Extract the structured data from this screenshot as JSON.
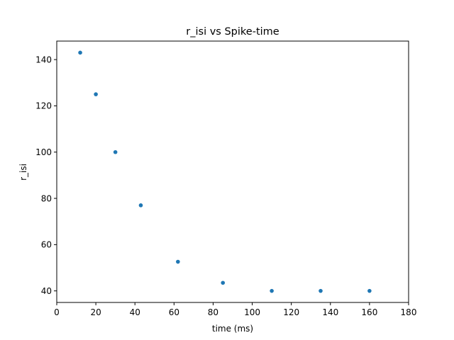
{
  "chart_data": {
    "type": "scatter",
    "title": "r_isi vs Spike-time",
    "xlabel": "time (ms)",
    "ylabel": "r_isi",
    "xlim": [
      0,
      180
    ],
    "ylim": [
      35,
      148
    ],
    "xticks": [
      0,
      20,
      40,
      60,
      80,
      100,
      120,
      140,
      160,
      180
    ],
    "yticks": [
      40,
      60,
      80,
      100,
      120,
      140
    ],
    "grid": false,
    "series": [
      {
        "color": "#1f77b4",
        "x": [
          12,
          20,
          30,
          43,
          62,
          85,
          110,
          135,
          160
        ],
        "y": [
          143,
          125,
          100,
          77,
          52.6,
          43.5,
          40,
          40,
          40
        ]
      }
    ]
  }
}
